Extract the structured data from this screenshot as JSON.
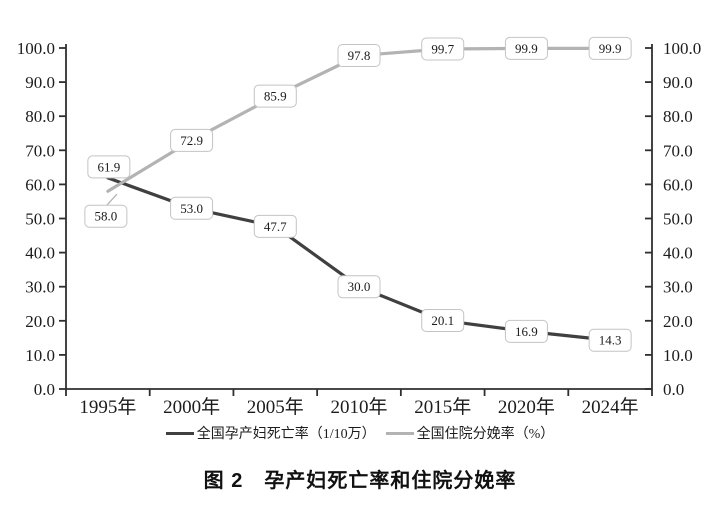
{
  "figure": {
    "caption": "图 2　孕产妇死亡率和住院分娩率"
  },
  "chart_data": {
    "type": "line",
    "title": "图 2 孕产妇死亡率和住院分娩率",
    "categories": [
      "1995年",
      "2000年",
      "2005年",
      "2010年",
      "2015年",
      "2020年",
      "2024年"
    ],
    "series": [
      {
        "name": "全国孕产妇死亡率（1/10万）",
        "axis": "left",
        "color": "#404040",
        "values": [
          61.9,
          53.0,
          47.7,
          30.0,
          20.1,
          16.9,
          14.3
        ],
        "labels": [
          "61.9",
          "53.0",
          "47.7",
          "30.0",
          "20.1",
          "16.9",
          "14.3"
        ]
      },
      {
        "name": "全国住院分娩率（%）",
        "axis": "right",
        "color": "#b3b3b3",
        "values": [
          58.0,
          72.9,
          85.9,
          97.8,
          99.7,
          99.9,
          99.9
        ],
        "labels": [
          "58.0",
          "72.9",
          "85.9",
          "97.8",
          "99.7",
          "99.9",
          "99.9"
        ]
      }
    ],
    "y_axis_left": {
      "min": 0,
      "max": 100,
      "step": 10,
      "tick_labels": [
        "0.0",
        "10.0",
        "20.0",
        "30.0",
        "40.0",
        "50.0",
        "60.0",
        "70.0",
        "80.0",
        "90.0",
        "100.0"
      ]
    },
    "y_axis_right": {
      "min": 0,
      "max": 100,
      "step": 10,
      "tick_labels": [
        "0.0",
        "10.0",
        "20.0",
        "30.0",
        "40.0",
        "50.0",
        "60.0",
        "70.0",
        "80.0",
        "90.0",
        "100.0"
      ]
    },
    "legend_position": "bottom",
    "grid": false,
    "data_labels_visible": true
  }
}
